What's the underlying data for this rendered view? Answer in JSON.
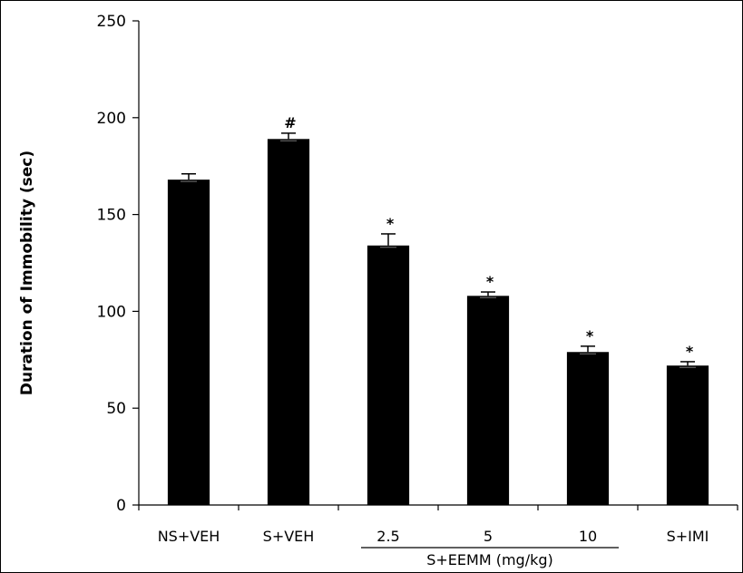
{
  "chart_data": {
    "type": "bar",
    "categories": [
      "NS+VEH",
      "S+VEH",
      "2.5",
      "5",
      "10",
      "S+IMI"
    ],
    "values": [
      168,
      189,
      134,
      108,
      79,
      72
    ],
    "errors": [
      3,
      3,
      6,
      2,
      3,
      2
    ],
    "annotations": [
      "",
      "#",
      "*",
      "*",
      "*",
      "*"
    ],
    "group_label": "S+EEMM (mg/kg)",
    "group_members": [
      "2.5",
      "5",
      "10"
    ],
    "title": "",
    "xlabel": "",
    "ylabel": "Duration of Immobility (sec)",
    "ylim": [
      0,
      250
    ],
    "yticks": [
      0,
      50,
      100,
      150,
      200,
      250
    ],
    "grid": false,
    "legend": "none",
    "bar_color": "#000000"
  }
}
